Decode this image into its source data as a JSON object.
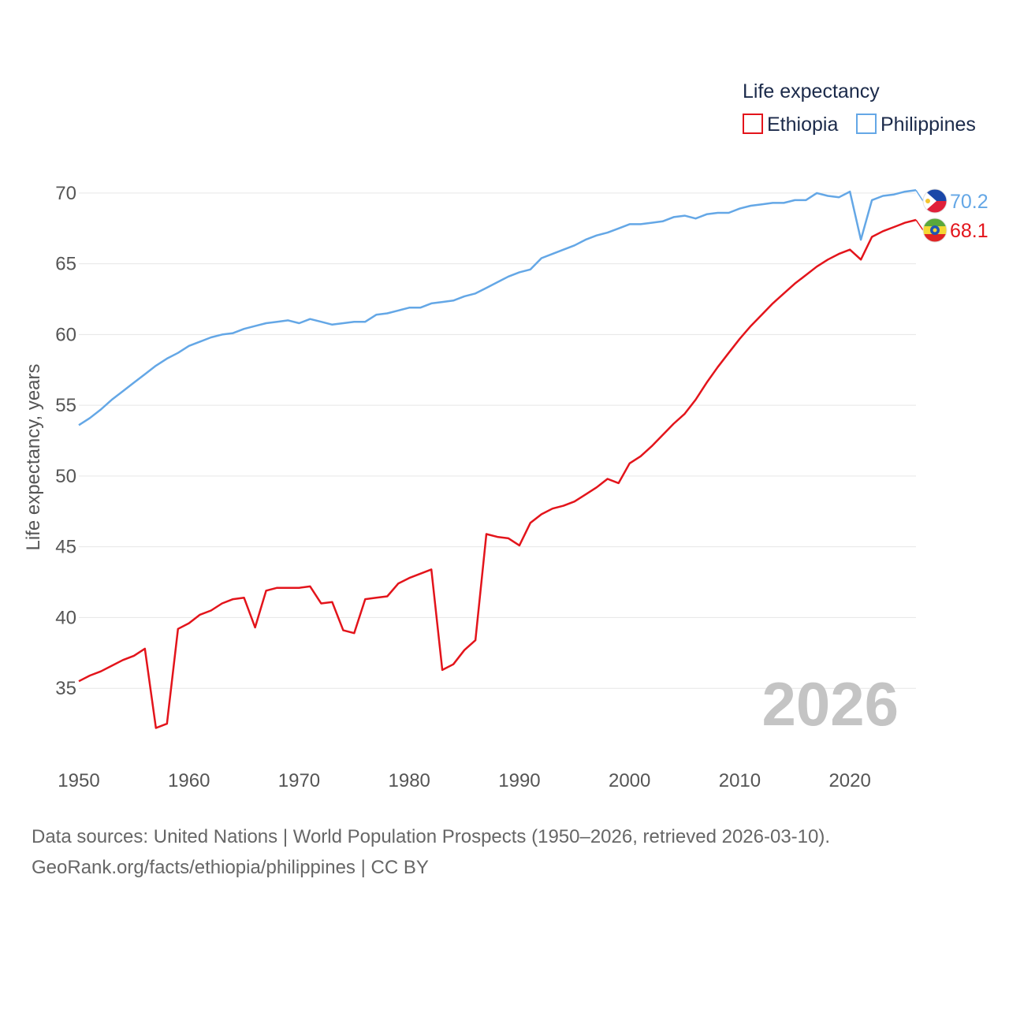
{
  "chart_data": {
    "type": "line",
    "legend_title": "Life expectancy",
    "ylabel": "Life expectancy, years",
    "xlabel": "",
    "xlim": [
      1950,
      2026
    ],
    "ylim": [
      31,
      72.5
    ],
    "x_ticks": [
      1950,
      1960,
      1970,
      1980,
      1990,
      2000,
      2010,
      2020
    ],
    "y_ticks": [
      35,
      40,
      45,
      50,
      55,
      60,
      65,
      70
    ],
    "legend_position": "top-right",
    "year_label": "2026",
    "x": [
      1950,
      1951,
      1952,
      1953,
      1954,
      1955,
      1956,
      1957,
      1958,
      1959,
      1960,
      1961,
      1962,
      1963,
      1964,
      1965,
      1966,
      1967,
      1968,
      1969,
      1970,
      1971,
      1972,
      1973,
      1974,
      1975,
      1976,
      1977,
      1978,
      1979,
      1980,
      1981,
      1982,
      1983,
      1984,
      1985,
      1986,
      1987,
      1988,
      1989,
      1990,
      1991,
      1992,
      1993,
      1994,
      1995,
      1996,
      1997,
      1998,
      1999,
      2000,
      2001,
      2002,
      2003,
      2004,
      2005,
      2006,
      2007,
      2008,
      2009,
      2010,
      2011,
      2012,
      2013,
      2014,
      2015,
      2016,
      2017,
      2018,
      2019,
      2020,
      2021,
      2022,
      2023,
      2024,
      2025,
      2026
    ],
    "series": [
      {
        "name": "Ethiopia",
        "color": "#e3141b",
        "end_value": "68.1",
        "flag": "ethiopia-flag",
        "values": [
          35.5,
          35.9,
          36.2,
          36.6,
          37.0,
          37.3,
          37.8,
          32.2,
          32.5,
          39.2,
          39.6,
          40.2,
          40.5,
          41.0,
          41.3,
          41.4,
          39.3,
          41.9,
          42.1,
          42.1,
          42.1,
          42.2,
          41.0,
          41.1,
          39.1,
          38.9,
          41.3,
          41.4,
          41.5,
          42.4,
          42.8,
          43.1,
          43.4,
          36.3,
          36.7,
          37.7,
          38.4,
          45.9,
          45.7,
          45.6,
          45.1,
          46.7,
          47.3,
          47.7,
          47.9,
          48.2,
          48.7,
          49.2,
          49.8,
          49.5,
          50.9,
          51.4,
          52.1,
          52.9,
          53.7,
          54.4,
          55.4,
          56.6,
          57.7,
          58.7,
          59.7,
          60.6,
          61.4,
          62.2,
          62.9,
          63.6,
          64.2,
          64.8,
          65.3,
          65.7,
          66.0,
          65.3,
          66.9,
          67.3,
          67.6,
          67.9,
          68.1
        ]
      },
      {
        "name": "Philippines",
        "color": "#64a7e6",
        "end_value": "70.2",
        "flag": "philippines-flag",
        "values": [
          53.6,
          54.1,
          54.7,
          55.4,
          56.0,
          56.6,
          57.2,
          57.8,
          58.3,
          58.7,
          59.2,
          59.5,
          59.8,
          60.0,
          60.1,
          60.4,
          60.6,
          60.8,
          60.9,
          61.0,
          60.8,
          61.1,
          60.9,
          60.7,
          60.8,
          60.9,
          60.9,
          61.4,
          61.5,
          61.7,
          61.9,
          61.9,
          62.2,
          62.3,
          62.4,
          62.7,
          62.9,
          63.3,
          63.7,
          64.1,
          64.4,
          64.6,
          65.4,
          65.7,
          66.0,
          66.3,
          66.7,
          67.0,
          67.2,
          67.5,
          67.8,
          67.8,
          67.9,
          68.0,
          68.3,
          68.4,
          68.2,
          68.5,
          68.6,
          68.6,
          68.9,
          69.1,
          69.2,
          69.3,
          69.3,
          69.5,
          69.5,
          70.0,
          69.8,
          69.7,
          70.1,
          66.7,
          69.5,
          69.8,
          69.9,
          70.1,
          70.2
        ]
      }
    ]
  },
  "footer": {
    "line1": "Data sources: United Nations | World Population Prospects (1950–2026, retrieved 2026-03-10).",
    "line2": "GeoRank.org/facts/ethiopia/philippines | CC BY"
  }
}
